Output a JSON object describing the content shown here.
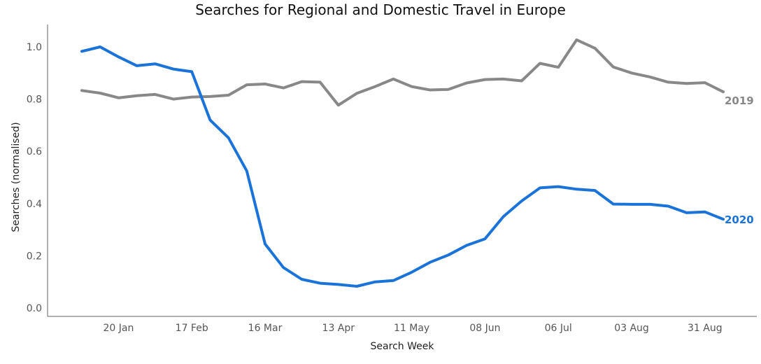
{
  "chart_data": {
    "type": "line",
    "title": "Searches for Regional and Domestic Travel in Europe",
    "xlabel": "Search Week",
    "ylabel": "Searches (normalised)",
    "ylim": [
      0,
      1.08
    ],
    "yticks": [
      "0.0",
      "0.2",
      "0.4",
      "0.6",
      "0.8",
      "1.0"
    ],
    "ytick_values": [
      0,
      0.2,
      0.4,
      0.6,
      0.8,
      1.0
    ],
    "xticks": [
      "20 Jan",
      "17 Feb",
      "16 Mar",
      "13 Apr",
      "11 May",
      "08 Jun",
      "06 Jul",
      "03 Aug",
      "31 Aug"
    ],
    "xtick_week_index": [
      2,
      6,
      10,
      14,
      18,
      22,
      26,
      30,
      34
    ],
    "grid": false,
    "legend": "labels at line ends",
    "series": [
      {
        "name": "2019",
        "color": "#888888",
        "values": [
          0.833,
          0.823,
          0.805,
          0.813,
          0.818,
          0.8,
          0.808,
          0.81,
          0.815,
          0.855,
          0.858,
          0.843,
          0.867,
          0.865,
          0.777,
          0.822,
          0.848,
          0.877,
          0.848,
          0.835,
          0.837,
          0.862,
          0.875,
          0.877,
          0.87,
          0.937,
          0.922,
          1.027,
          0.995,
          0.923,
          0.9,
          0.885,
          0.865,
          0.86,
          0.863,
          0.828
        ]
      },
      {
        "name": "2020",
        "color": "#1a73d9",
        "values": [
          0.983,
          1.0,
          0.962,
          0.928,
          0.935,
          0.915,
          0.905,
          0.72,
          0.652,
          0.525,
          0.245,
          0.155,
          0.11,
          0.095,
          0.09,
          0.083,
          0.1,
          0.105,
          0.137,
          0.175,
          0.203,
          0.24,
          0.265,
          0.35,
          0.41,
          0.46,
          0.465,
          0.455,
          0.45,
          0.398,
          0.397,
          0.397,
          0.39,
          0.365,
          0.368,
          0.34
        ]
      }
    ]
  }
}
